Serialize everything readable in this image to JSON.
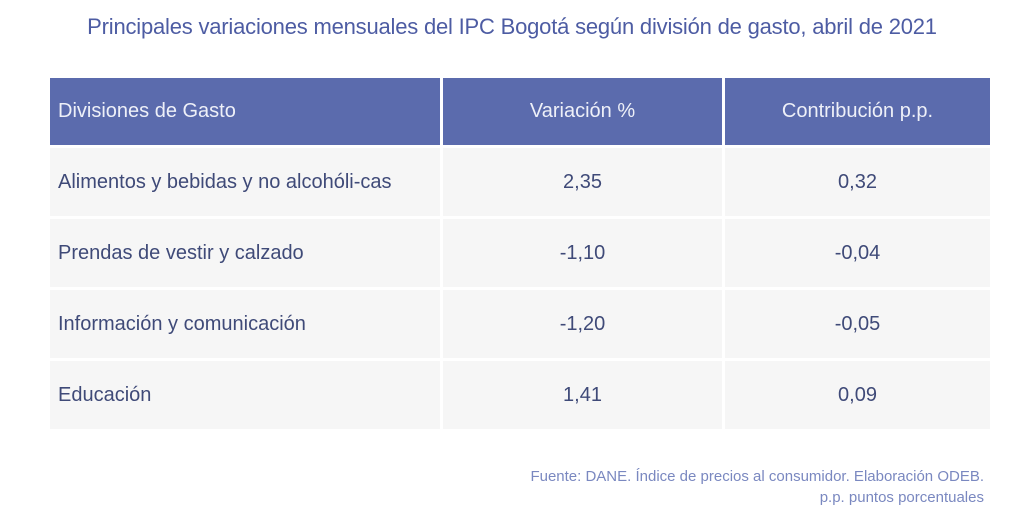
{
  "title": "Principales variaciones mensuales del IPC Bogotá según división de gasto, abril de 2021",
  "table": {
    "headers": [
      "Divisiones de Gasto",
      "Variación %",
      "Contribución p.p."
    ],
    "rows": [
      [
        "Alimentos y bebidas y no alcohóli-cas",
        "2,35",
        "0,32"
      ],
      [
        "Prendas de vestir y calzado",
        "-1,10",
        "-0,04"
      ],
      [
        "Información y comunicación",
        "-1,20",
        "-0,05"
      ],
      [
        "Educación",
        "1,41",
        "0,09"
      ]
    ]
  },
  "footer": {
    "source": "Fuente: DANE. Índice de precios al consumidor. Elaboración ODEB.",
    "note": "p.p. puntos porcentuales"
  }
}
